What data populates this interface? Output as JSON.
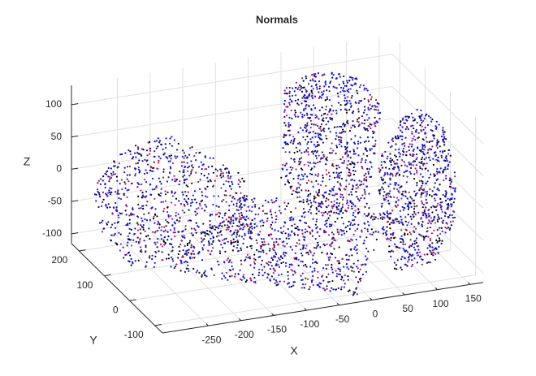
{
  "chart_data": {
    "type": "scatter3d",
    "title": "Normals",
    "xlabel": "X",
    "ylabel": "Y",
    "zlabel": "Z",
    "xlim": [
      -320,
      170
    ],
    "ylim": [
      -130,
      230
    ],
    "zlim": [
      -115,
      130
    ],
    "xticks": [
      -250,
      -200,
      -150,
      -100,
      -50,
      0,
      50,
      100,
      150
    ],
    "yticks": [
      -100,
      0,
      100,
      200
    ],
    "zticks": [
      -100,
      -50,
      0,
      50,
      100
    ],
    "grid": true
  }
}
